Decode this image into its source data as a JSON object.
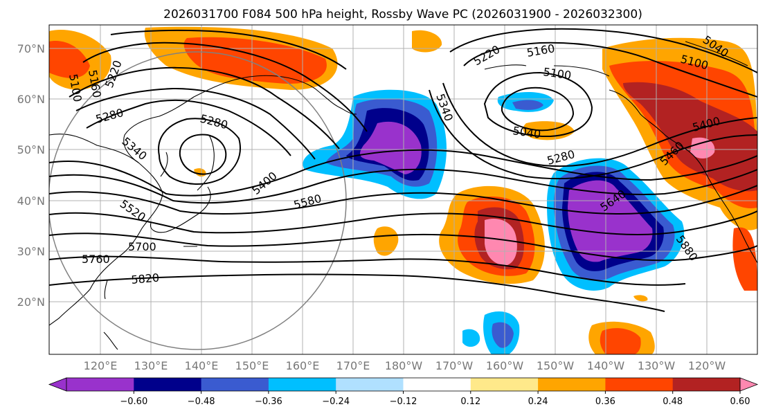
{
  "title": "2026031700 F084 500 hPa height, Rossby Wave PC (2026031900 - 2026032300)",
  "map": {
    "lat_labels": [
      "70°N",
      "60°N",
      "50°N",
      "40°N",
      "30°N",
      "20°N"
    ],
    "lon_labels": [
      "120°E",
      "130°E",
      "140°E",
      "150°E",
      "160°E",
      "170°E",
      "180°W",
      "170°W",
      "160°W",
      "150°W",
      "140°W",
      "130°W",
      "120°W"
    ],
    "contour_labels": [
      "5100",
      "5160",
      "5220",
      "5280",
      "5340",
      "5280",
      "5400",
      "5520",
      "5580",
      "5700",
      "5760",
      "5820",
      "5340",
      "5220",
      "5160",
      "5100",
      "5040",
      "5280",
      "5640",
      "5880",
      "5400",
      "5460",
      "5100",
      "5040"
    ]
  },
  "colorbar": {
    "ticks": [
      "−0.60",
      "−0.48",
      "−0.36",
      "−0.24",
      "−0.12",
      "0.12",
      "0.24",
      "0.36",
      "0.48",
      "0.60"
    ],
    "colors": [
      "#9932cc",
      "#00008b",
      "#3a5bd0",
      "#00bfff",
      "#b0e0ff",
      "#ffffff",
      "#ffe98a",
      "#ffa500",
      "#ff4500",
      "#b22222",
      "#ff88b0"
    ]
  }
}
